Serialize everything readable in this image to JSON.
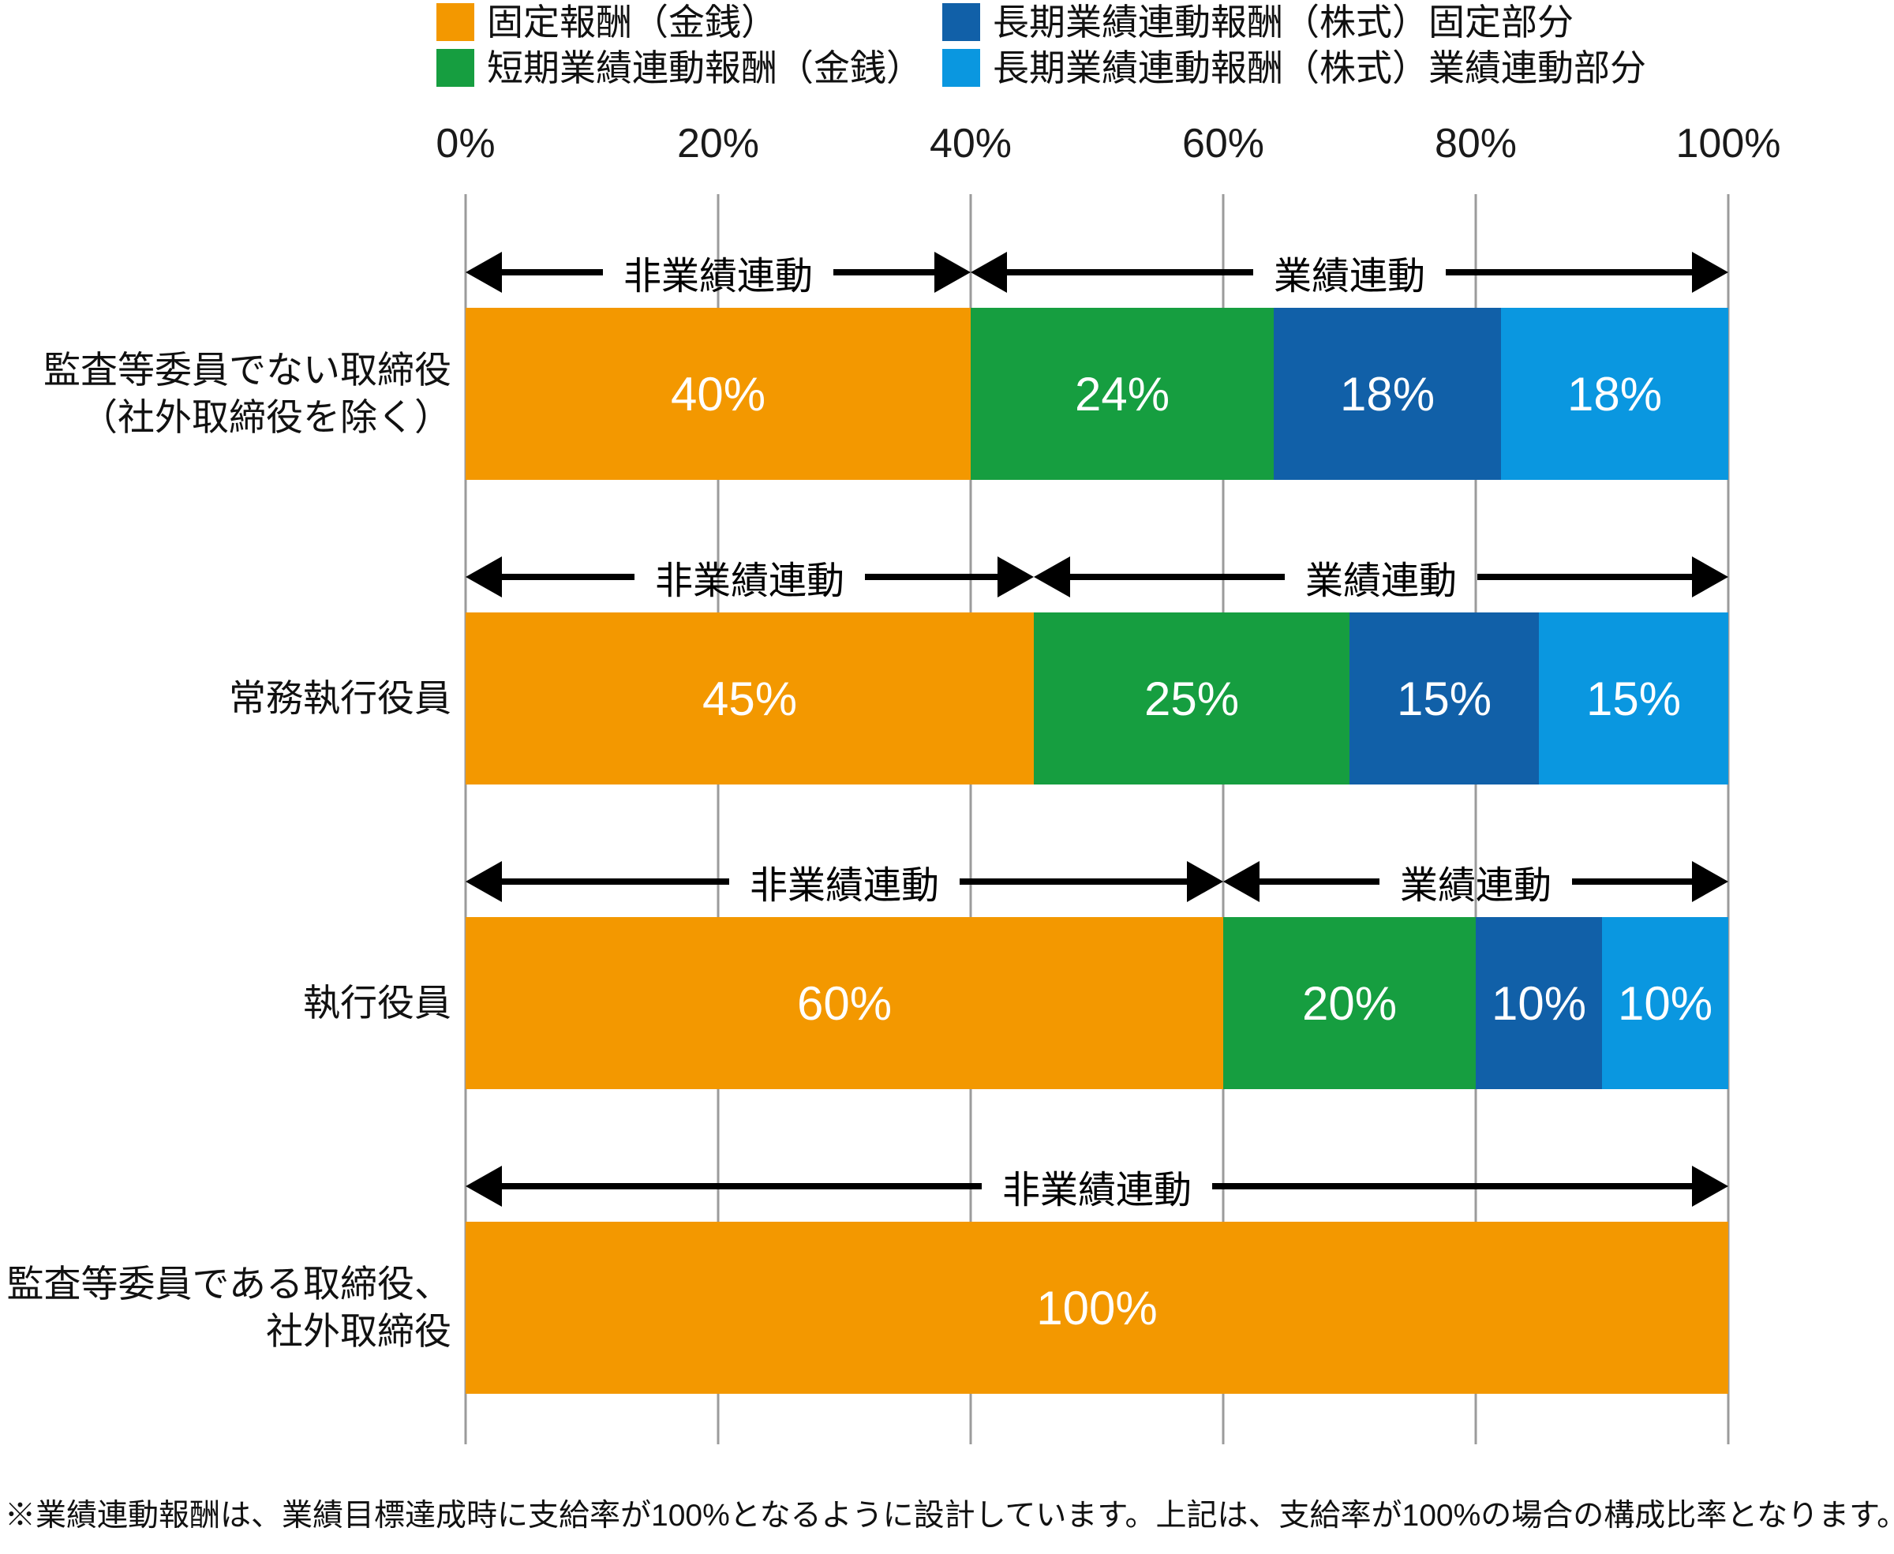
{
  "chart_data": {
    "type": "bar",
    "orientation": "horizontal-stacked",
    "unit": "%",
    "title": "",
    "categories": [
      "監査等委員でない取締役（社外取締役を除く）",
      "常務執行役員",
      "執行役員",
      "監査等委員である取締役、社外取締役"
    ],
    "series": [
      {
        "name": "固定報酬（金銭）",
        "color": "#F39800",
        "values": [
          40,
          45,
          60,
          100
        ]
      },
      {
        "name": "短期業績連動報酬（金銭）",
        "color": "#169E40",
        "values": [
          24,
          25,
          20,
          0
        ]
      },
      {
        "name": "長期業績連動報酬（株式）固定部分",
        "color": "#1160A8",
        "values": [
          18,
          15,
          10,
          0
        ]
      },
      {
        "name": "長期業績連動報酬（株式）業績連動部分",
        "color": "#0A97E0",
        "values": [
          18,
          15,
          10,
          0
        ]
      }
    ],
    "xlim": [
      0,
      100
    ],
    "x_ticks": [
      "0%",
      "20%",
      "40%",
      "60%",
      "80%",
      "100%"
    ],
    "legend_position": "top",
    "grid": "vertical-only",
    "annotations": "двойные span arrows per row: 非業績連動 (non-performance-linked) over fixed portion, 業績連動 (performance-linked) over variable portion"
  },
  "legend": {
    "items": [
      {
        "label": "固定報酬（金銭）",
        "color": "#F39800"
      },
      {
        "label": "短期業績連動報酬（金銭）",
        "color": "#169E40"
      },
      {
        "label": "長期業績連動報酬（株式）固定部分",
        "color": "#1160A8"
      },
      {
        "label": "長期業績連動報酬（株式）業績連動部分",
        "color": "#0A97E0"
      }
    ]
  },
  "axis": {
    "ticks": [
      "0%",
      "20%",
      "40%",
      "60%",
      "80%",
      "100%"
    ]
  },
  "rows": [
    {
      "label_lines": [
        "監査等委員でない取締役",
        "（社外取締役を除く）"
      ],
      "segments": [
        {
          "text": "40%",
          "value": 40,
          "color": "#F39800"
        },
        {
          "text": "24%",
          "value": 24,
          "color": "#169E40"
        },
        {
          "text": "18%",
          "value": 18,
          "color": "#1160A8"
        },
        {
          "text": "18%",
          "value": 18,
          "color": "#0A97E0"
        }
      ],
      "arrows": [
        {
          "label": "非業績連動",
          "from": 0,
          "to": 40
        },
        {
          "label": "業績連動",
          "from": 40,
          "to": 100
        }
      ]
    },
    {
      "label_lines": [
        "常務執行役員"
      ],
      "segments": [
        {
          "text": "45%",
          "value": 45,
          "color": "#F39800"
        },
        {
          "text": "25%",
          "value": 25,
          "color": "#169E40"
        },
        {
          "text": "15%",
          "value": 15,
          "color": "#1160A8"
        },
        {
          "text": "15%",
          "value": 15,
          "color": "#0A97E0"
        }
      ],
      "arrows": [
        {
          "label": "非業績連動",
          "from": 0,
          "to": 45
        },
        {
          "label": "業績連動",
          "from": 45,
          "to": 100
        }
      ]
    },
    {
      "label_lines": [
        "執行役員"
      ],
      "segments": [
        {
          "text": "60%",
          "value": 60,
          "color": "#F39800"
        },
        {
          "text": "20%",
          "value": 20,
          "color": "#169E40"
        },
        {
          "text": "10%",
          "value": 10,
          "color": "#1160A8"
        },
        {
          "text": "10%",
          "value": 10,
          "color": "#0A97E0"
        }
      ],
      "arrows": [
        {
          "label": "非業績連動",
          "from": 0,
          "to": 60
        },
        {
          "label": "業績連動",
          "from": 60,
          "to": 100
        }
      ]
    },
    {
      "label_lines": [
        "監査等委員である取締役、",
        "社外取締役"
      ],
      "segments": [
        {
          "text": "100%",
          "value": 100,
          "color": "#F39800"
        }
      ],
      "arrows": [
        {
          "label": "非業績連動",
          "from": 0,
          "to": 100
        }
      ]
    }
  ],
  "footnote": "※業績連動報酬は、業績目標達成時に支給率が100%となるように設計しています。上記は、支給率が100%の場合の構成比率となります。"
}
